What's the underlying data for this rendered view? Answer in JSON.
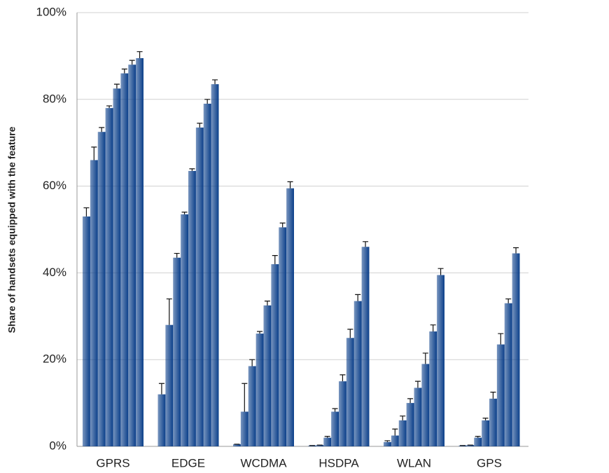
{
  "chart_data": {
    "type": "bar",
    "ylabel": "Share of handsets equipped with the feature",
    "categories": [
      "GPRS",
      "EDGE",
      "WCDMA",
      "HSDPA",
      "WLAN",
      "GPS"
    ],
    "ylim": [
      0,
      100
    ],
    "yticks": [
      {
        "value": 0,
        "label": "0%"
      },
      {
        "value": 20,
        "label": "20%"
      },
      {
        "value": 40,
        "label": "40%"
      },
      {
        "value": 60,
        "label": "60%"
      },
      {
        "value": 80,
        "label": "80%"
      },
      {
        "value": 100,
        "label": "100%"
      }
    ],
    "grid": true,
    "series": [
      {
        "color": "#0b3f8a",
        "values": [
          53,
          12,
          0.5,
          0.2,
          1,
          0.2
        ],
        "errors": [
          2,
          2.5,
          0,
          0,
          0.3,
          0
        ]
      },
      {
        "color": "#0b3f8a",
        "values": [
          66,
          28,
          8,
          0.3,
          2.5,
          0.3
        ],
        "errors": [
          3,
          6,
          6.5,
          0,
          1.5,
          0
        ]
      },
      {
        "color": "#0b3f8a",
        "values": [
          72.5,
          43.5,
          18.5,
          2,
          6,
          2
        ],
        "errors": [
          1,
          1,
          1.5,
          0.3,
          1,
          0.3
        ]
      },
      {
        "color": "#0b3f8a",
        "values": [
          78,
          53.5,
          26,
          8,
          10,
          6
        ],
        "errors": [
          0.5,
          0.5,
          0.5,
          0.7,
          1,
          0.5
        ]
      },
      {
        "color": "#0b3f8a",
        "values": [
          82.5,
          63.5,
          32.5,
          15,
          13.5,
          11
        ],
        "errors": [
          1,
          0.5,
          1,
          1.5,
          1.5,
          1.5
        ]
      },
      {
        "color": "#0b3f8a",
        "values": [
          86,
          73.5,
          42,
          25,
          19,
          23.5
        ],
        "errors": [
          1,
          1,
          2,
          2,
          2.5,
          2.5
        ]
      },
      {
        "color": "#0b3f8a",
        "values": [
          88,
          79,
          50.5,
          33.5,
          26.5,
          33
        ],
        "errors": [
          1,
          1,
          1,
          1.5,
          1.5,
          1
        ]
      },
      {
        "color": "#0b3f8a",
        "values": [
          89.5,
          83.5,
          59.5,
          46,
          39.5,
          44.5
        ],
        "errors": [
          1.5,
          1,
          1.5,
          1.2,
          1.5,
          1.3
        ]
      }
    ]
  }
}
